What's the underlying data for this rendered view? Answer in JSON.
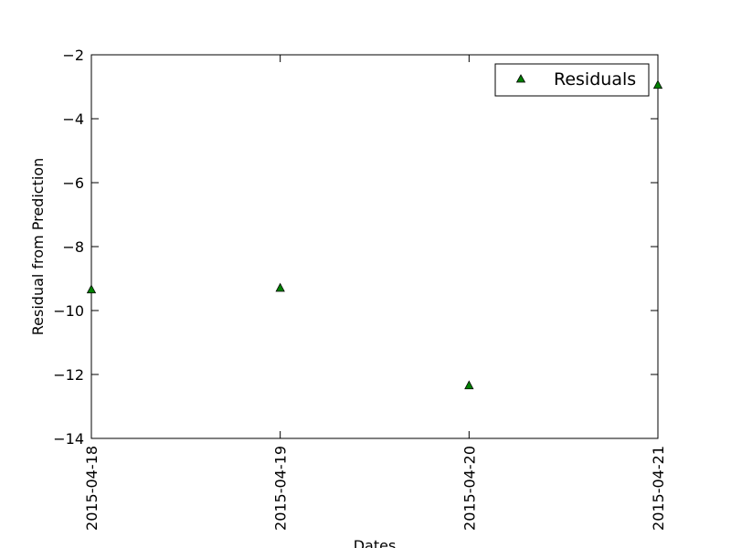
{
  "chart_data": {
    "type": "scatter",
    "title": "",
    "xlabel": "Dates",
    "ylabel": "Residual from Prediction",
    "x_ticks": [
      "2015-04-18",
      "2015-04-19",
      "2015-04-20",
      "2015-04-21"
    ],
    "y_ticks": [
      "−14",
      "−12",
      "−10",
      "−8",
      "−6",
      "−4",
      "−2"
    ],
    "xlim": [
      "2015-04-18",
      "2015-04-21"
    ],
    "ylim": [
      -14,
      -2
    ],
    "grid": false,
    "legend_position": "top-right",
    "marker": "triangle-up",
    "colors": {
      "marker_fill": "#008000",
      "marker_edge": "#000000"
    },
    "series": [
      {
        "name": "Residuals",
        "points": [
          {
            "x": "2015-04-18",
            "y": -9.35
          },
          {
            "x": "2015-04-19",
            "y": -9.3
          },
          {
            "x": "2015-04-20",
            "y": -12.35
          },
          {
            "x": "2015-04-21",
            "y": -2.95
          }
        ]
      }
    ]
  }
}
